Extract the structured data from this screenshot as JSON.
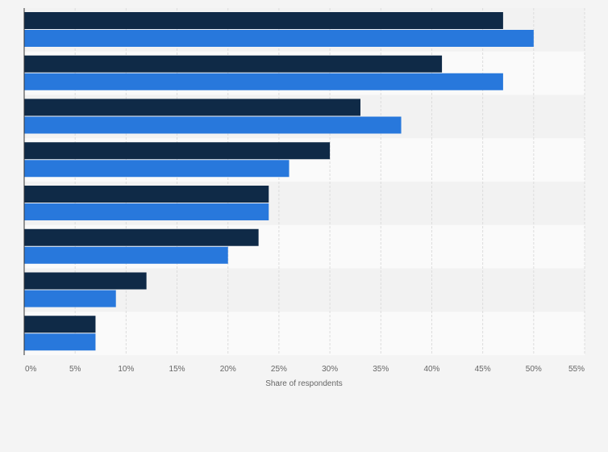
{
  "chart_data": {
    "type": "bar",
    "orientation": "horizontal",
    "categories": [
      "",
      "",
      "",
      "",
      "",
      "",
      "",
      ""
    ],
    "series": [
      {
        "name": "",
        "color": "#0f2a47",
        "values": [
          47,
          41,
          33,
          30,
          24,
          23,
          12,
          7
        ]
      },
      {
        "name": "",
        "color": "#2878dc",
        "values": [
          50,
          47,
          37,
          26,
          24,
          20,
          9,
          7
        ]
      }
    ],
    "xlabel": "Share of respondents",
    "ylabel": "",
    "xlim": [
      0,
      55
    ],
    "xticks": [
      0,
      5,
      10,
      15,
      20,
      25,
      30,
      35,
      40,
      45,
      50,
      55
    ],
    "xtick_labels": [
      "0%",
      "5%",
      "10%",
      "15%",
      "20%",
      "25%",
      "30%",
      "35%",
      "40%",
      "45%",
      "50%",
      "55%"
    ],
    "grid": true,
    "legend": "none"
  }
}
